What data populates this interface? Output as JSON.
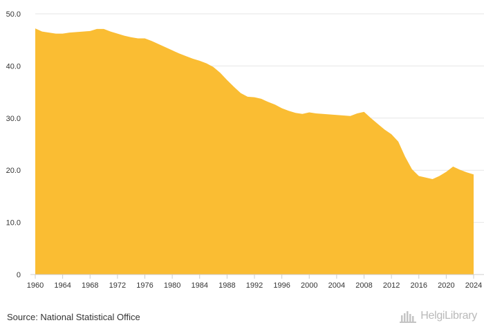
{
  "chart_data": {
    "type": "area",
    "title": "",
    "xlabel": "",
    "ylabel": "",
    "x": [
      1960,
      1961,
      1962,
      1963,
      1964,
      1965,
      1966,
      1967,
      1968,
      1969,
      1970,
      1971,
      1972,
      1973,
      1974,
      1975,
      1976,
      1977,
      1978,
      1979,
      1980,
      1981,
      1982,
      1983,
      1984,
      1985,
      1986,
      1987,
      1988,
      1989,
      1990,
      1991,
      1992,
      1993,
      1994,
      1995,
      1996,
      1997,
      1998,
      1999,
      2000,
      2001,
      2002,
      2003,
      2004,
      2005,
      2006,
      2007,
      2008,
      2009,
      2010,
      2011,
      2012,
      2013,
      2014,
      2015,
      2016,
      2017,
      2018,
      2019,
      2020,
      2021,
      2022,
      2023,
      2024
    ],
    "series": [
      {
        "values": [
          47.2,
          46.6,
          46.4,
          46.2,
          46.2,
          46.4,
          46.5,
          46.6,
          46.7,
          47.1,
          47.1,
          46.6,
          46.2,
          45.8,
          45.5,
          45.3,
          45.3,
          44.8,
          44.2,
          43.6,
          43.0,
          42.4,
          41.9,
          41.4,
          41.0,
          40.5,
          39.8,
          38.7,
          37.3,
          36.0,
          34.8,
          34.1,
          34.0,
          33.7,
          33.1,
          32.6,
          31.9,
          31.4,
          31.0,
          30.8,
          31.1,
          30.9,
          30.8,
          30.7,
          30.6,
          30.5,
          30.4,
          30.9,
          31.2,
          30.0,
          28.9,
          27.8,
          26.9,
          25.5,
          22.6,
          20.2,
          18.9,
          18.6,
          18.3,
          18.9,
          19.7,
          20.7,
          20.1,
          19.6,
          19.2
        ]
      }
    ],
    "xlim": [
      1960,
      2024
    ],
    "ylim": [
      0,
      50
    ],
    "x_ticks": [
      "1960",
      "1964",
      "1968",
      "1972",
      "1976",
      "1980",
      "1984",
      "1988",
      "1992",
      "1996",
      "2000",
      "2004",
      "2008",
      "2012",
      "2016",
      "2020",
      "2024"
    ],
    "y_ticks": [
      "0",
      "10.0",
      "20.0",
      "30.0",
      "40.0",
      "50.0"
    ],
    "grid": "horizontal",
    "legend": "none",
    "fill_color": "#FABD33",
    "grid_color": "#E6E6E6",
    "axis_color": "#CCCCCC"
  },
  "footer": {
    "source": "Source: National Statistical Office",
    "brand": "HelgiLibrary"
  }
}
